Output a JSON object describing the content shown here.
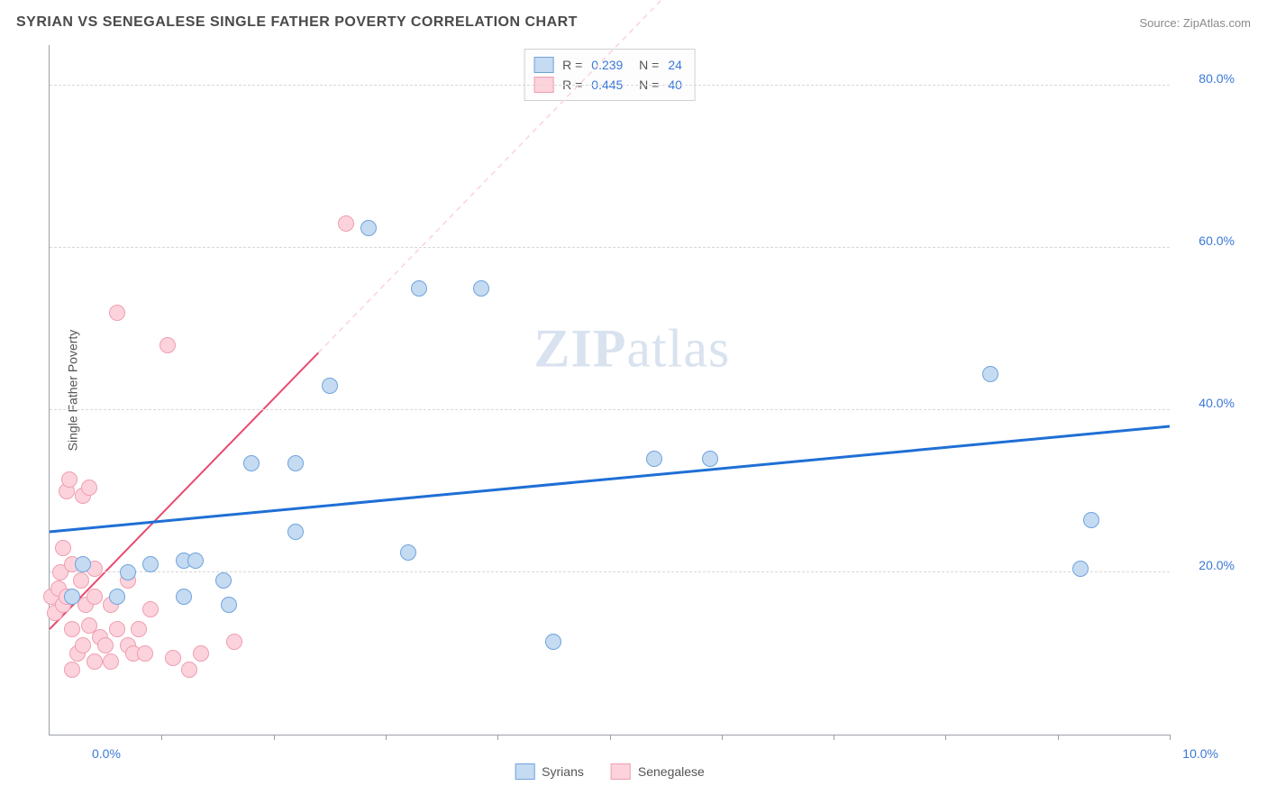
{
  "header": {
    "title": "SYRIAN VS SENEGALESE SINGLE FATHER POVERTY CORRELATION CHART",
    "source": "Source: ZipAtlas.com"
  },
  "watermark": {
    "zip": "ZIP",
    "atlas": "atlas"
  },
  "chart": {
    "type": "scatter",
    "ylabel": "Single Father Poverty",
    "xlim": [
      0,
      10
    ],
    "ylim": [
      0,
      85
    ],
    "background_color": "#ffffff",
    "grid_color": "#d8d8d8",
    "axis_color": "#9aa0a6",
    "ytick_positions": [
      20,
      40,
      60,
      80
    ],
    "ytick_labels": [
      "20.0%",
      "40.0%",
      "60.0%",
      "80.0%"
    ],
    "xtick_positions": [
      0,
      1,
      2,
      3,
      4,
      5,
      6,
      7,
      8,
      9,
      10
    ],
    "xaxis_end_labels": {
      "left": "0.0%",
      "right": "10.0%"
    },
    "label_color": "#3b78d8",
    "label_fontsize": 14,
    "point_radius": 9,
    "series": {
      "syrians": {
        "label": "Syrians",
        "fill": "#c5dbf2",
        "stroke": "#6fa3dd",
        "R": "0.239",
        "N": "24",
        "trend": {
          "y_at_x0": 25,
          "y_at_x10": 38,
          "solid_until_x": 10,
          "color": "#1f6fd6",
          "width": 3
        },
        "points": [
          [
            0.2,
            17
          ],
          [
            0.3,
            21
          ],
          [
            0.6,
            17
          ],
          [
            0.7,
            20
          ],
          [
            0.9,
            21
          ],
          [
            1.2,
            17
          ],
          [
            1.2,
            21.5
          ],
          [
            1.3,
            21.5
          ],
          [
            1.55,
            19
          ],
          [
            1.6,
            16
          ],
          [
            1.8,
            33.5
          ],
          [
            2.2,
            25
          ],
          [
            2.2,
            33.5
          ],
          [
            2.5,
            43
          ],
          [
            2.85,
            62.5
          ],
          [
            3.2,
            22.5
          ],
          [
            3.3,
            55
          ],
          [
            3.85,
            55
          ],
          [
            4.5,
            11.5
          ],
          [
            5.4,
            34
          ],
          [
            5.9,
            34
          ],
          [
            8.4,
            44.5
          ],
          [
            9.2,
            20.5
          ],
          [
            9.3,
            26.5
          ]
        ]
      },
      "senegalese": {
        "label": "Senegalese",
        "fill": "#fcd3dc",
        "stroke": "#ef9eb0",
        "R": "0.445",
        "N": "40",
        "trend": {
          "y_at_x0": 13,
          "y_at_x10": 155,
          "solid_until_x": 2.4,
          "color": "#e94a6f",
          "width": 2
        },
        "points": [
          [
            0.02,
            17
          ],
          [
            0.05,
            15
          ],
          [
            0.08,
            18
          ],
          [
            0.1,
            20
          ],
          [
            0.12,
            16
          ],
          [
            0.12,
            23
          ],
          [
            0.15,
            17
          ],
          [
            0.15,
            30
          ],
          [
            0.18,
            31.5
          ],
          [
            0.2,
            8
          ],
          [
            0.2,
            13
          ],
          [
            0.2,
            21
          ],
          [
            0.25,
            10
          ],
          [
            0.28,
            19
          ],
          [
            0.3,
            11
          ],
          [
            0.3,
            29.5
          ],
          [
            0.32,
            16
          ],
          [
            0.35,
            13.5
          ],
          [
            0.35,
            30.5
          ],
          [
            0.4,
            9
          ],
          [
            0.4,
            17
          ],
          [
            0.4,
            20.5
          ],
          [
            0.45,
            12
          ],
          [
            0.5,
            11
          ],
          [
            0.55,
            9
          ],
          [
            0.55,
            16
          ],
          [
            0.6,
            52
          ],
          [
            0.6,
            13
          ],
          [
            0.7,
            11
          ],
          [
            0.7,
            19
          ],
          [
            0.75,
            10
          ],
          [
            0.8,
            13
          ],
          [
            0.85,
            10
          ],
          [
            0.9,
            15.5
          ],
          [
            1.05,
            48
          ],
          [
            1.1,
            9.5
          ],
          [
            1.25,
            8
          ],
          [
            1.35,
            10
          ],
          [
            1.65,
            11.5
          ],
          [
            2.65,
            63
          ]
        ]
      }
    }
  }
}
